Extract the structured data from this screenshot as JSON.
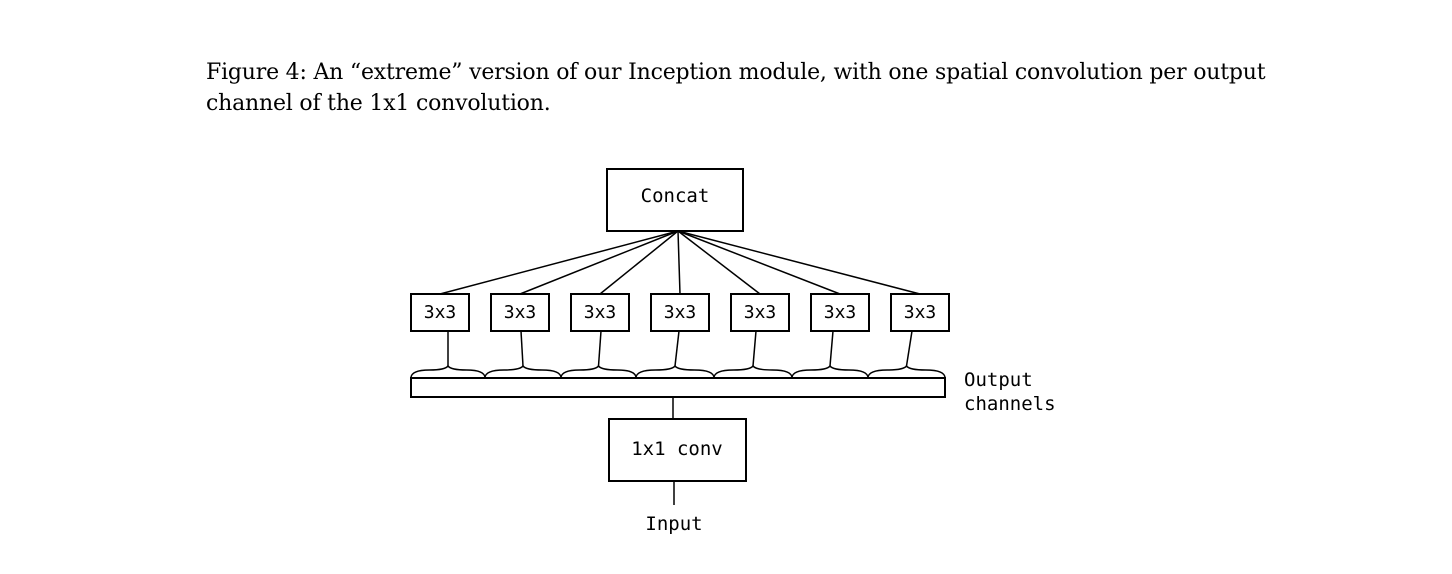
{
  "caption": {
    "text": "Figure 4: An “extreme” version of our Inception module, with one spatial convolution per output channel of the 1x1 convolution."
  },
  "diagram": {
    "concat_label": "Concat",
    "branches": [
      {
        "label": "3x3"
      },
      {
        "label": "3x3"
      },
      {
        "label": "3x3"
      },
      {
        "label": "3x3"
      },
      {
        "label": "3x3"
      },
      {
        "label": "3x3"
      },
      {
        "label": "3x3"
      }
    ],
    "output_channels_label_line1": "Output",
    "output_channels_label_line2": "channels",
    "conv_label": "1x1 conv",
    "input_label": "Input"
  }
}
